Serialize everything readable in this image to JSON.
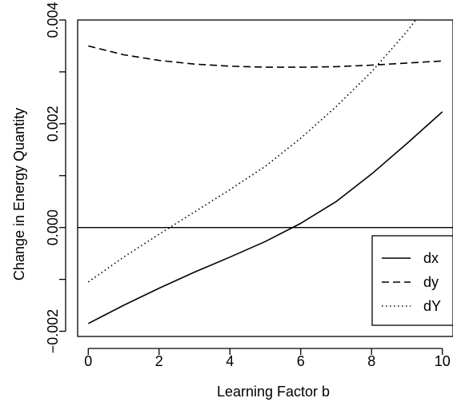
{
  "chart_data": {
    "type": "line",
    "xlabel": "Learning Factor b",
    "ylabel": "Change in Energy Quantity",
    "xlim": [
      -0.3,
      10.3
    ],
    "ylim": [
      -0.0021,
      0.004
    ],
    "x_ticks": [
      0,
      2,
      4,
      6,
      8,
      10
    ],
    "x_tick_labels": [
      "0",
      "2",
      "4",
      "6",
      "8",
      "10"
    ],
    "y_ticks": [
      -0.002,
      0.0,
      0.002,
      0.004
    ],
    "y_tick_labels": [
      "−0.002",
      "0.000",
      "0.002",
      "0.004"
    ],
    "reference_line_y": 0,
    "grid": false,
    "legend_position": "bottom-right",
    "series": [
      {
        "name": "dx",
        "line_style": "solid",
        "x": [
          0,
          1,
          2,
          3,
          4,
          5,
          6,
          7,
          8,
          9,
          10
        ],
        "y": [
          -0.00185,
          -0.0015,
          -0.00117,
          -0.00086,
          -0.00057,
          -0.00027,
          8e-05,
          0.0005,
          0.00103,
          0.00162,
          0.00223
        ]
      },
      {
        "name": "dy",
        "line_style": "dashed",
        "x": [
          0,
          1,
          2,
          3,
          4,
          5,
          6,
          7,
          8,
          9,
          10
        ],
        "y": [
          0.0035,
          0.00333,
          0.00322,
          0.00315,
          0.00311,
          0.00309,
          0.00309,
          0.0031,
          0.00313,
          0.00317,
          0.00321
        ]
      },
      {
        "name": "dY",
        "line_style": "dotted",
        "x": [
          0,
          1,
          2,
          3,
          4,
          5,
          6,
          7,
          8,
          9,
          9.3
        ],
        "y": [
          -0.00105,
          -0.00057,
          -0.00013,
          0.0003,
          0.00073,
          0.00118,
          0.00172,
          0.00233,
          0.003,
          0.00378,
          0.00405
        ]
      }
    ]
  }
}
